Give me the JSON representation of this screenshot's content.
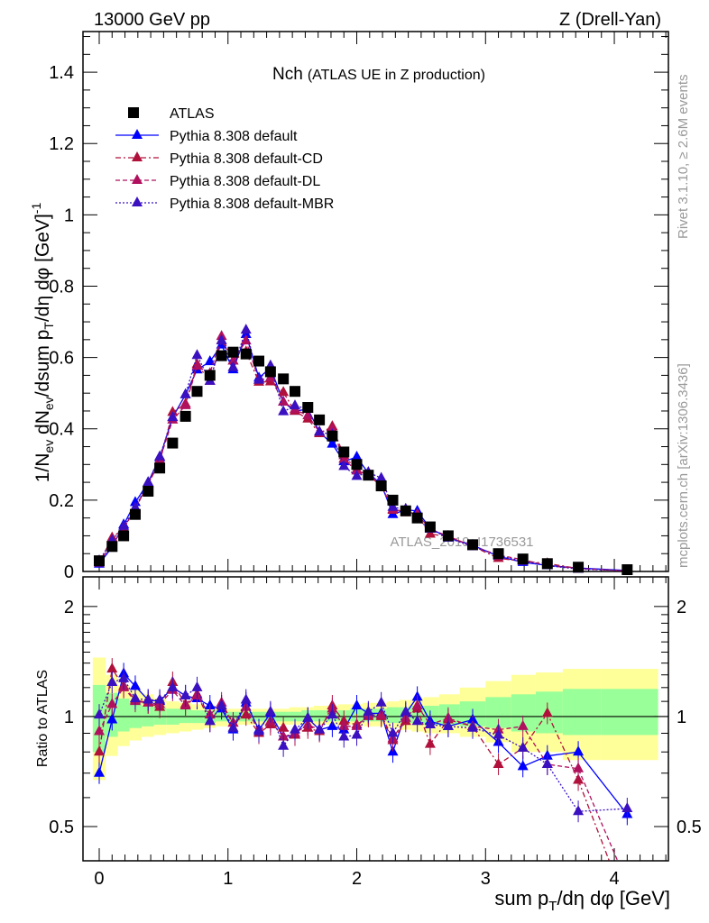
{
  "header": {
    "left": "13000 GeV pp",
    "right": "Z (Drell-Yan)"
  },
  "side": {
    "rivet": "Rivet 3.1.10, ≥ 2.6M events",
    "mcplots": "mcplots.cern.ch [arXiv:1306.3436]"
  },
  "chart_data": {
    "type": "scatter",
    "title_main": "Nch",
    "title_sub": "(ATLAS UE in Z production)",
    "watermark": "ATLAS_2019_I1736531",
    "ylabel_parts": [
      "1/N",
      "ev",
      " dN",
      "ev",
      "/dsum p",
      "T",
      "/dη dφ  [GeV]",
      "-1"
    ],
    "xlabel_parts": [
      "sum p",
      "T",
      "/dη dφ [GeV]"
    ],
    "ratio_ylabel": "Ratio to ATLAS",
    "xlim": [
      -0.126,
      4.42
    ],
    "ylim": [
      0,
      1.514
    ],
    "ratio_ylim": [
      0.403,
      2.41
    ],
    "ratio_scale": "log",
    "x_ticks": [
      "0",
      "1",
      "2",
      "3",
      "4"
    ],
    "y_ticks": [
      "0",
      "0.2",
      "0.4",
      "0.6",
      "0.8",
      "1",
      "1.2",
      "1.4"
    ],
    "ratio_ticks": [
      "0.5",
      "1",
      "2"
    ],
    "legend_position": "top-left",
    "x": [
      0,
      0.1,
      0.19,
      0.28,
      0.38,
      0.47,
      0.57,
      0.67,
      0.76,
      0.86,
      0.95,
      1.04,
      1.14,
      1.24,
      1.33,
      1.43,
      1.52,
      1.62,
      1.71,
      1.81,
      1.9,
      2.0,
      2.09,
      2.19,
      2.28,
      2.38,
      2.47,
      2.57,
      2.71,
      2.9,
      3.1,
      3.29,
      3.48,
      3.72,
      4.1
    ],
    "bin_edges": [
      -0.05,
      0.05,
      0.145,
      0.235,
      0.33,
      0.425,
      0.52,
      0.62,
      0.715,
      0.81,
      0.905,
      0.995,
      1.09,
      1.19,
      1.285,
      1.38,
      1.475,
      1.57,
      1.665,
      1.76,
      1.855,
      1.95,
      2.045,
      2.14,
      2.235,
      2.33,
      2.425,
      2.52,
      2.64,
      2.8,
      3.0,
      3.2,
      3.39,
      3.6,
      3.9,
      4.34
    ],
    "data": {
      "name": "ATLAS",
      "color": "#000000",
      "values": [
        0.03,
        0.07,
        0.1,
        0.16,
        0.225,
        0.29,
        0.36,
        0.435,
        0.505,
        0.55,
        0.605,
        0.615,
        0.61,
        0.59,
        0.56,
        0.54,
        0.505,
        0.46,
        0.425,
        0.38,
        0.335,
        0.3,
        0.27,
        0.24,
        0.2,
        0.17,
        0.15,
        0.125,
        0.1,
        0.075,
        0.05,
        0.035,
        0.022,
        0.012,
        0.005
      ]
    },
    "band_outer": {
      "color": "#ffff99",
      "lo": [
        0.67,
        0.78,
        0.83,
        0.86,
        0.88,
        0.89,
        0.9,
        0.91,
        0.92,
        0.93,
        0.94,
        0.95,
        0.95,
        0.95,
        0.95,
        0.95,
        0.95,
        0.95,
        0.95,
        0.95,
        0.95,
        0.95,
        0.94,
        0.94,
        0.93,
        0.92,
        0.91,
        0.9,
        0.9,
        0.88,
        0.85,
        0.8,
        0.8,
        0.76,
        0.76
      ],
      "hi": [
        1.45,
        1.3,
        1.22,
        1.18,
        1.15,
        1.12,
        1.1,
        1.09,
        1.08,
        1.07,
        1.06,
        1.05,
        1.05,
        1.05,
        1.05,
        1.05,
        1.06,
        1.06,
        1.07,
        1.07,
        1.08,
        1.08,
        1.09,
        1.09,
        1.1,
        1.11,
        1.12,
        1.13,
        1.15,
        1.2,
        1.25,
        1.3,
        1.32,
        1.35,
        1.35
      ]
    },
    "band_inner": {
      "color": "#99ff99",
      "lo": [
        0.8,
        0.88,
        0.91,
        0.93,
        0.94,
        0.95,
        0.95,
        0.96,
        0.96,
        0.96,
        0.97,
        0.97,
        0.97,
        0.97,
        0.97,
        0.97,
        0.97,
        0.97,
        0.97,
        0.97,
        0.97,
        0.97,
        0.97,
        0.97,
        0.96,
        0.96,
        0.96,
        0.95,
        0.95,
        0.94,
        0.93,
        0.91,
        0.9,
        0.89,
        0.89
      ],
      "hi": [
        1.22,
        1.16,
        1.12,
        1.09,
        1.07,
        1.06,
        1.05,
        1.05,
        1.04,
        1.04,
        1.04,
        1.03,
        1.03,
        1.03,
        1.03,
        1.03,
        1.03,
        1.04,
        1.04,
        1.04,
        1.04,
        1.05,
        1.05,
        1.05,
        1.06,
        1.06,
        1.07,
        1.07,
        1.08,
        1.1,
        1.13,
        1.15,
        1.17,
        1.19,
        1.19
      ]
    },
    "series": [
      {
        "name": "Pythia 8.308 default",
        "color": "#0000ff",
        "dash": "",
        "ratio": [
          0.7,
          0.98,
          1.31,
          1.21,
          1.11,
          1.1,
          1.2,
          1.14,
          1.12,
          1.07,
          1.05,
          0.92,
          1.09,
          0.92,
          1.02,
          0.88,
          0.89,
          0.99,
          0.92,
          0.94,
          0.92,
          1.07,
          1.02,
          1.02,
          0.8,
          1.02,
          1.13,
          0.97,
          0.94,
          0.98,
          0.85,
          0.73,
          0.78,
          0.8,
          0.54
        ]
      },
      {
        "name": "Pythia 8.308 default-CD",
        "color": "#b0103a",
        "dash": "6,3,2,3",
        "ratio": [
          0.8,
          1.35,
          1.21,
          1.11,
          1.09,
          1.06,
          1.24,
          1.08,
          1.15,
          0.97,
          1.07,
          0.96,
          1.01,
          0.9,
          0.95,
          0.93,
          0.89,
          0.93,
          0.91,
          1.07,
          0.97,
          0.95,
          1.0,
          1.0,
          0.86,
          0.97,
          1.05,
          0.84,
          0.98,
          0.94,
          0.74,
          0.82,
          1.02,
          0.67,
          0.3
        ]
      },
      {
        "name": "Pythia 8.308 default-DL",
        "color": "#b0105e",
        "dash": "5,3",
        "ratio": [
          0.91,
          1.08,
          1.2,
          1.1,
          1.09,
          1.08,
          1.18,
          1.07,
          1.14,
          1.01,
          1.09,
          0.96,
          1.06,
          0.91,
          0.97,
          0.88,
          0.9,
          0.95,
          0.92,
          1.05,
          0.94,
          0.94,
          1.01,
          1.01,
          0.87,
          0.99,
          1.07,
          0.95,
          0.99,
          0.94,
          0.92,
          0.94,
          0.74,
          0.72,
          0.35
        ]
      },
      {
        "name": "Pythia 8.308 default-MBR",
        "color": "#3a10c0",
        "dash": "2,2",
        "ratio": [
          1.01,
          1.24,
          1.27,
          1.12,
          1.11,
          1.11,
          1.2,
          1.14,
          1.2,
          0.97,
          1.07,
          0.93,
          1.11,
          0.91,
          1.03,
          0.83,
          0.92,
          0.99,
          0.92,
          1.01,
          0.88,
          0.89,
          1.03,
          1.09,
          0.9,
          1.03,
          0.97,
          0.95,
          0.94,
          0.93,
          0.89,
          0.82,
          0.74,
          0.55,
          0.56
        ]
      }
    ]
  }
}
